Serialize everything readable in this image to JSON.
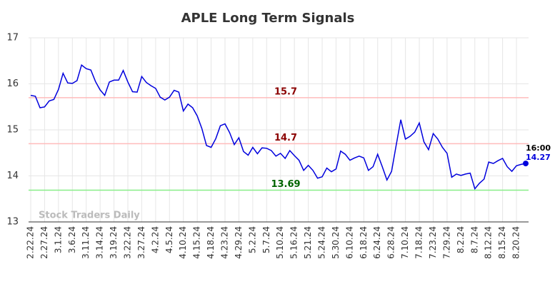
{
  "chart_data": {
    "type": "line",
    "title": "APLE Long Term Signals",
    "watermark": "Stock Traders Daily",
    "end_annotation": "16:00",
    "categories": [
      "2.22.24",
      null,
      null,
      "2.27.24",
      null,
      null,
      "3.1.24",
      null,
      null,
      "3.6.24",
      null,
      null,
      "3.11.24",
      null,
      null,
      "3.14.24",
      null,
      null,
      "3.19.24",
      null,
      null,
      "3.22.24",
      null,
      null,
      "3.27.24",
      null,
      null,
      "4.2.24",
      null,
      null,
      "4.5.24",
      null,
      null,
      "4.10.24",
      null,
      null,
      "4.15.24",
      null,
      null,
      "4.18.24",
      null,
      null,
      "4.23.24",
      null,
      null,
      "4.29.24",
      null,
      null,
      "5.2.24",
      null,
      null,
      "5.7.24",
      null,
      null,
      "5.10.24",
      null,
      null,
      "5.16.24",
      null,
      null,
      "5.21.24",
      null,
      null,
      "5.24.24",
      null,
      null,
      "5.30.24",
      null,
      null,
      "6.10.24",
      null,
      null,
      "6.18.24",
      null,
      null,
      "6.24.24",
      null,
      null,
      "6.28.24",
      null,
      null,
      "7.10.24",
      null,
      null,
      "7.18.24",
      null,
      null,
      "7.23.24",
      null,
      null,
      "7.29.24",
      null,
      null,
      "8.2.24",
      null,
      null,
      "8.7.24",
      null,
      null,
      "8.12.24",
      null,
      null,
      "8.15.24",
      null,
      null,
      "8.20.24",
      null,
      null
    ],
    "series": [
      {
        "name": "APLE",
        "color": "#0000dd",
        "values": [
          15.75,
          15.73,
          15.48,
          15.5,
          15.63,
          15.66,
          15.88,
          16.23,
          16.02,
          16.01,
          16.07,
          16.41,
          16.33,
          16.3,
          16.05,
          15.87,
          15.75,
          16.04,
          16.08,
          16.08,
          16.29,
          16.04,
          15.83,
          15.82,
          16.16,
          16.03,
          15.96,
          15.9,
          15.71,
          15.65,
          15.71,
          15.86,
          15.82,
          15.41,
          15.56,
          15.48,
          15.3,
          15.03,
          14.66,
          14.62,
          14.81,
          15.09,
          15.13,
          14.94,
          14.68,
          14.83,
          14.53,
          14.45,
          14.62,
          14.48,
          14.61,
          14.6,
          14.55,
          14.43,
          14.49,
          14.38,
          14.55,
          14.44,
          14.34,
          14.12,
          14.23,
          14.12,
          13.95,
          13.98,
          14.17,
          14.09,
          14.15,
          14.54,
          14.47,
          14.34,
          14.39,
          14.43,
          14.39,
          14.12,
          14.2,
          14.47,
          14.2,
          13.91,
          14.1,
          14.67,
          15.22,
          14.8,
          14.86,
          14.95,
          15.15,
          14.74,
          14.57,
          14.92,
          14.8,
          14.62,
          14.49,
          13.97,
          14.04,
          14.01,
          14.04,
          14.06,
          13.72,
          13.84,
          13.93,
          14.3,
          14.27,
          14.33,
          14.38,
          14.2,
          14.1,
          14.22,
          14.25,
          14.27
        ]
      }
    ],
    "hlines": [
      {
        "value": 15.7,
        "color": "#ffbbbb",
        "label_color": "#8b0000"
      },
      {
        "value": 14.7,
        "color": "#ffbbbb",
        "label_color": "#8b0000"
      },
      {
        "value": 13.69,
        "color": "#88ee88",
        "label_color": "#006400"
      }
    ],
    "ylim": [
      13,
      17
    ],
    "yticks": [
      13,
      14,
      15,
      16,
      17
    ],
    "grid": true
  }
}
